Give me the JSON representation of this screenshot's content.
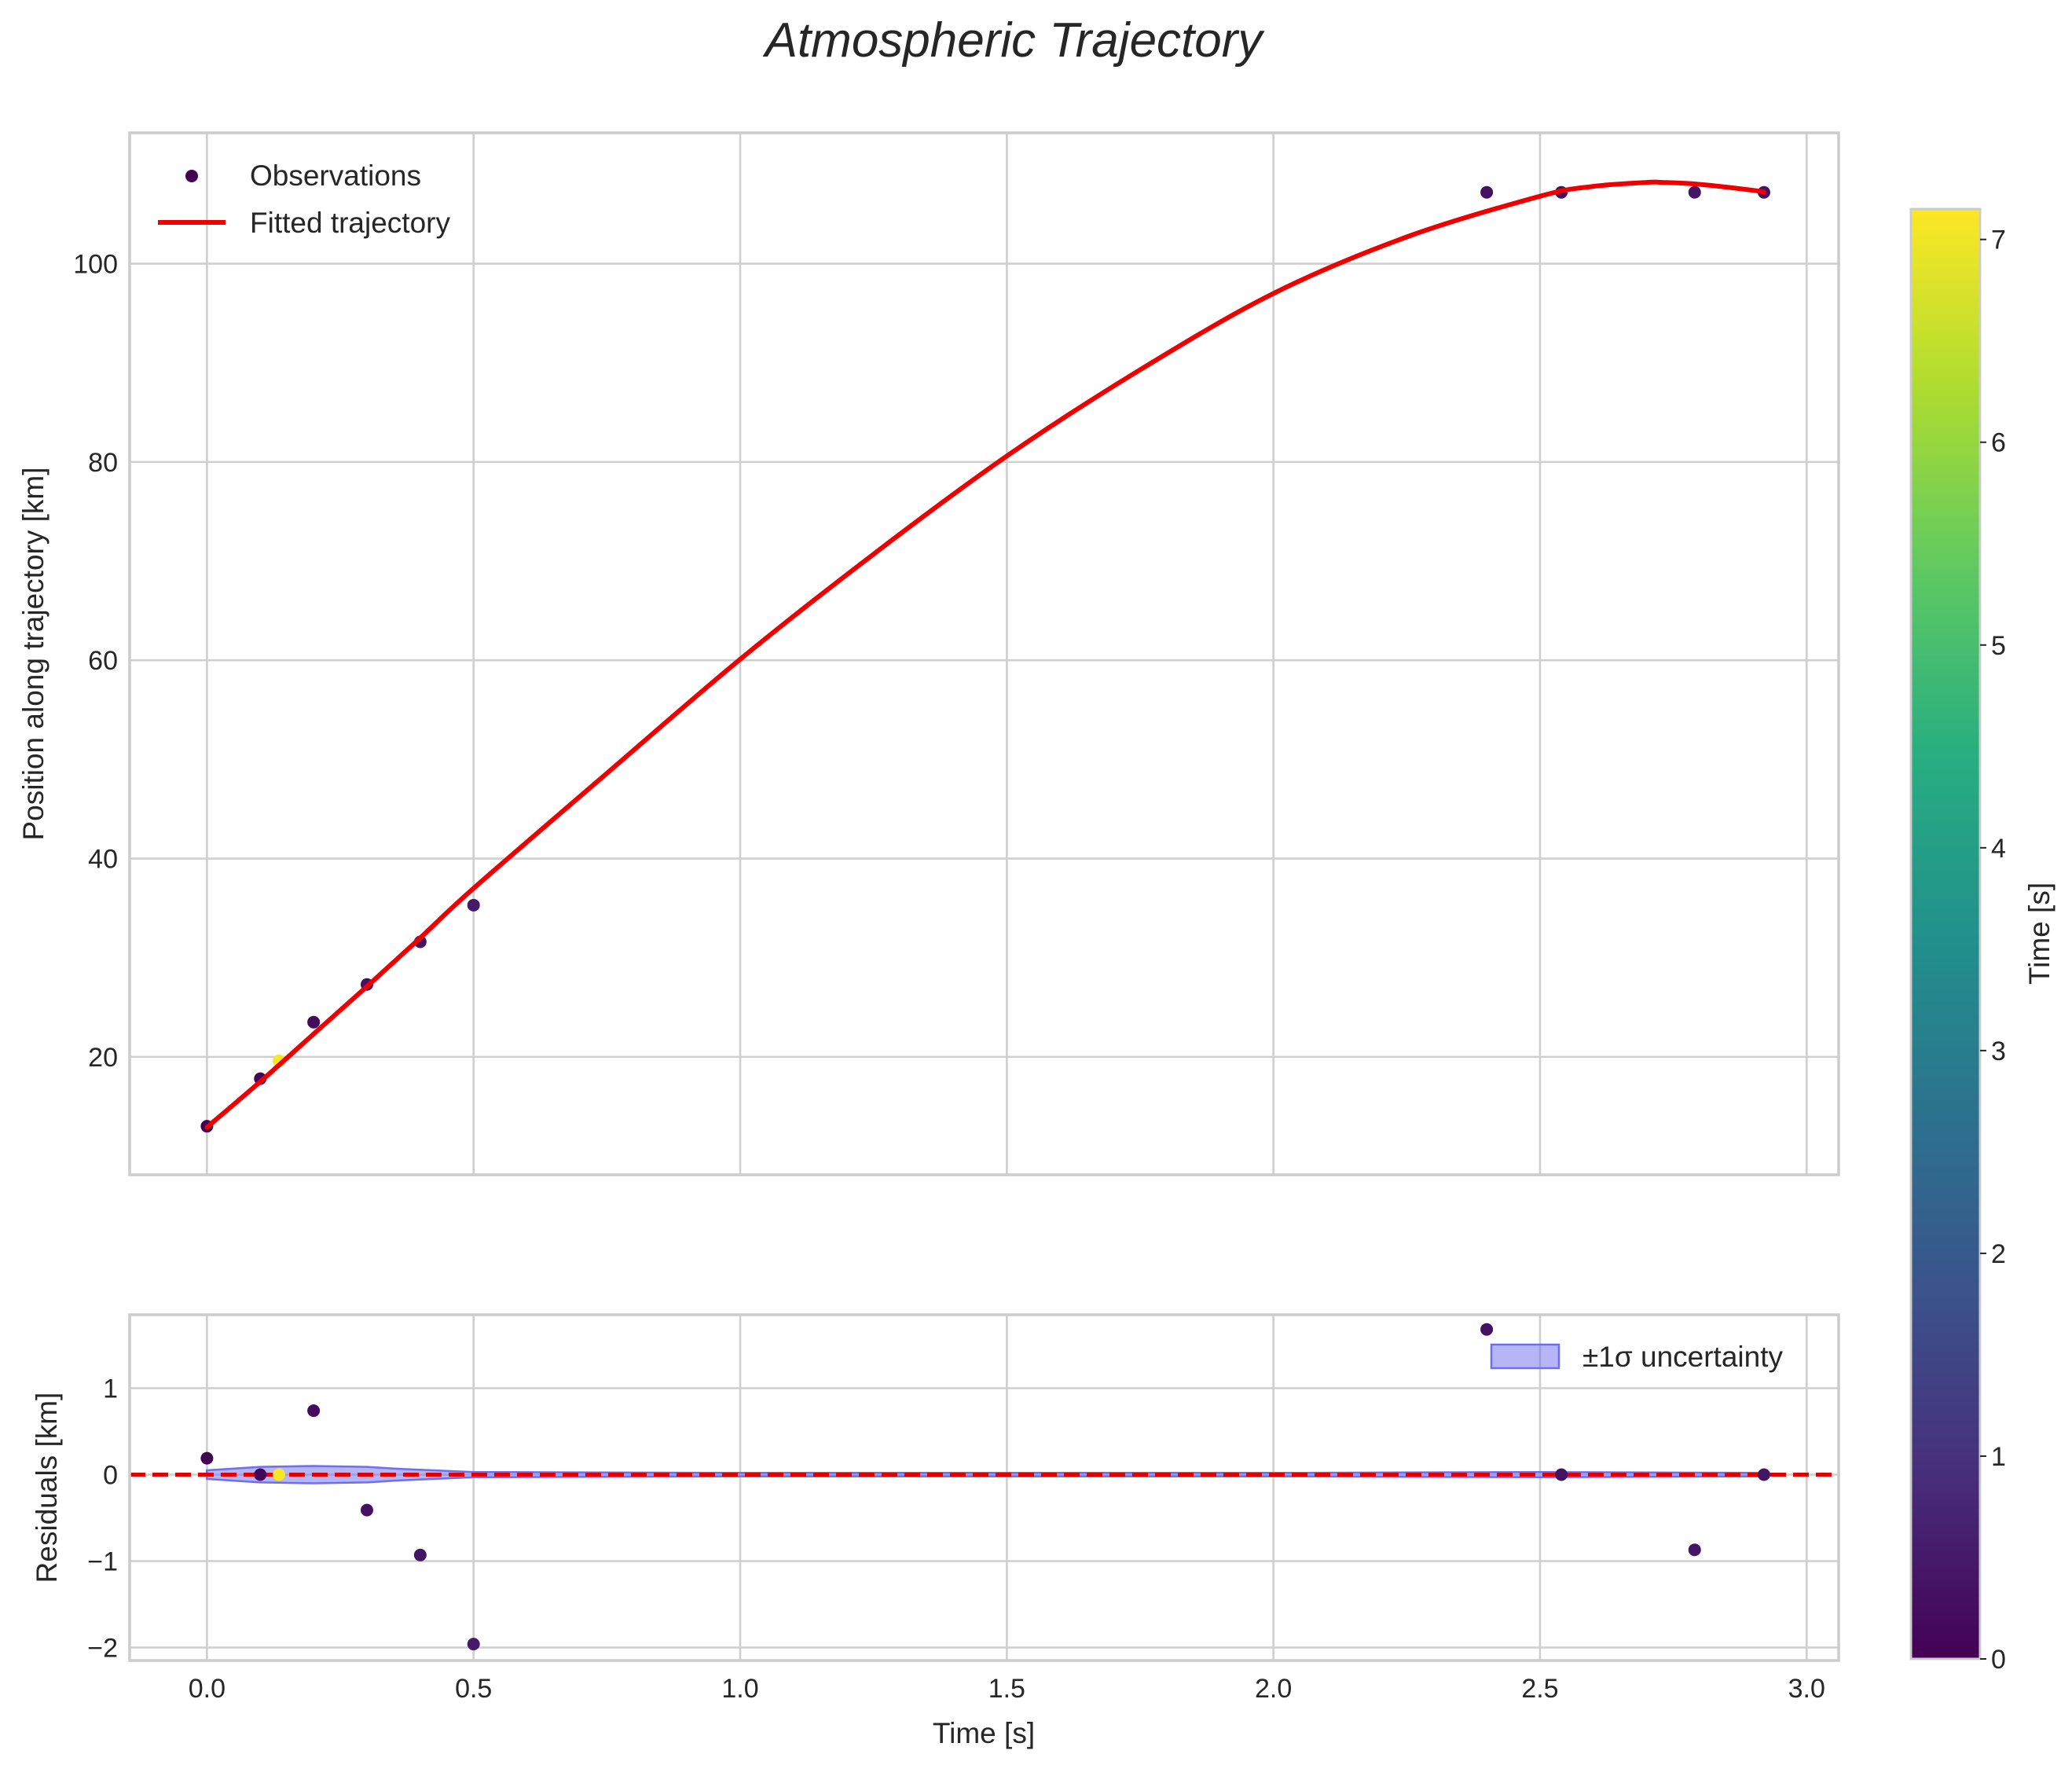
{
  "chart_data": {
    "type": "scatter",
    "title": "Atmospheric Trajectory",
    "xlabel": "Time [s]",
    "xlim": [
      -0.145,
      3.06
    ],
    "xticks": [
      0.0,
      0.5,
      1.0,
      1.5,
      2.0,
      2.5,
      3.0
    ],
    "xtick_labels": [
      "0.0",
      "0.5",
      "1.0",
      "1.5",
      "2.0",
      "2.5",
      "3.0"
    ],
    "grid": true,
    "top_panel": {
      "ylabel": "Position along trajectory [km]",
      "ylim": [
        8.1,
        113.2
      ],
      "yticks": [
        20,
        40,
        60,
        80,
        100
      ],
      "ytick_labels": [
        "20",
        "40",
        "60",
        "80",
        "100"
      ],
      "legend": {
        "location": "upper-left",
        "entries": [
          "Observations",
          "Fitted trajectory"
        ]
      },
      "observations": [
        {
          "t": 0.0,
          "y": 13.0,
          "c": 0.0
        },
        {
          "t": 0.1,
          "y": 17.8,
          "c": 0.1
        },
        {
          "t": 0.2,
          "y": 23.5,
          "c": 0.2
        },
        {
          "t": 0.3,
          "y": 27.3,
          "c": 0.3
        },
        {
          "t": 0.4,
          "y": 31.6,
          "c": 0.4
        },
        {
          "t": 0.5,
          "y": 35.3,
          "c": 0.5
        },
        {
          "t": 2.4,
          "y": 107.2,
          "c": 0.35
        },
        {
          "t": 2.54,
          "y": 107.2,
          "c": 0.35
        },
        {
          "t": 2.79,
          "y": 107.2,
          "c": 0.4
        },
        {
          "t": 2.92,
          "y": 107.2,
          "c": 0.4
        }
      ],
      "hidden_observation": {
        "t": 0.135,
        "y": 19.6,
        "c": 7.1
      },
      "fit": {
        "name": "Fitted trajectory",
        "color": "#ee0000",
        "t": [
          0.0,
          0.1,
          0.2,
          0.3,
          0.4,
          0.5,
          0.75,
          1.0,
          1.25,
          1.5,
          1.75,
          2.0,
          2.25,
          2.5,
          2.6,
          2.7,
          2.73,
          2.8,
          2.9,
          2.92
        ],
        "y": [
          12.9,
          17.5,
          22.3,
          27.1,
          32.0,
          37.0,
          48.6,
          60.1,
          70.7,
          80.6,
          89.3,
          97.0,
          102.7,
          106.8,
          107.8,
          108.2,
          108.2,
          108.0,
          107.4,
          107.2
        ]
      }
    },
    "bottom_panel": {
      "ylabel": "Residuals [km]",
      "ylim": [
        -2.15,
        1.85
      ],
      "yticks": [
        -2,
        -1,
        0,
        1
      ],
      "ytick_labels": [
        "−2",
        "−1",
        "0",
        "1"
      ],
      "legend": {
        "location": "upper-right",
        "entries": [
          "±1σ uncertainty"
        ]
      },
      "band_color": "#6e6ef0",
      "zero_line_color": "#e00000",
      "residuals": [
        {
          "t": 0.0,
          "r": 0.19,
          "c": 0.0
        },
        {
          "t": 0.1,
          "r": 0.0,
          "c": 0.1
        },
        {
          "t": 0.135,
          "r": 0.0,
          "c": 7.1
        },
        {
          "t": 0.2,
          "r": 0.74,
          "c": 0.2
        },
        {
          "t": 0.3,
          "r": -0.41,
          "c": 0.3
        },
        {
          "t": 0.4,
          "r": -0.93,
          "c": 0.4
        },
        {
          "t": 0.5,
          "r": -1.96,
          "c": 0.5
        },
        {
          "t": 2.4,
          "r": 1.68,
          "c": 0.35
        },
        {
          "t": 2.54,
          "r": 0.0,
          "c": 0.35
        },
        {
          "t": 2.79,
          "r": -0.87,
          "c": 0.4
        },
        {
          "t": 2.92,
          "r": 0.0,
          "c": 0.4
        }
      ],
      "sigma": {
        "t": [
          0.0,
          0.1,
          0.2,
          0.3,
          0.35,
          0.5,
          1.0,
          1.5,
          2.0,
          2.5,
          2.92
        ],
        "s": [
          0.05,
          0.09,
          0.1,
          0.09,
          0.07,
          0.03,
          0.02,
          0.02,
          0.02,
          0.03,
          0.02
        ]
      }
    },
    "colorbar": {
      "label": "Time [s]",
      "colormap": "viridis",
      "range": [
        0,
        7.15
      ],
      "ticks": [
        0,
        1,
        2,
        3,
        4,
        5,
        6,
        7
      ],
      "tick_labels": [
        "0",
        "1",
        "2",
        "3",
        "4",
        "5",
        "6",
        "7"
      ]
    }
  }
}
